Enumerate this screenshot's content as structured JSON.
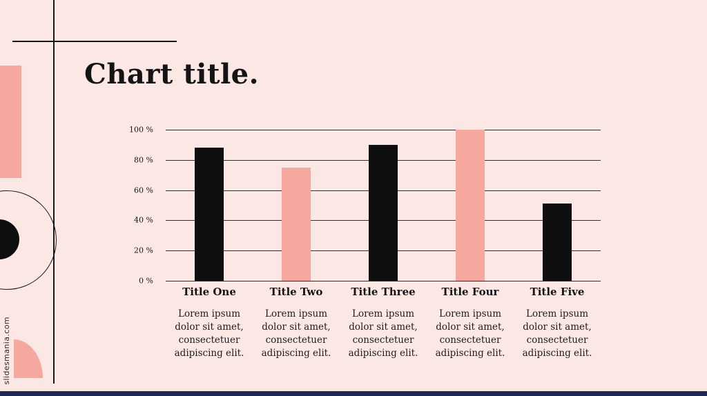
{
  "slide": {
    "title": "Chart title.",
    "credit": "slidesmania.com"
  },
  "colors": {
    "background": "#fbe8e5",
    "accent_pink": "#f6a79e",
    "bar_black": "#0e0e0e",
    "line": "#161616",
    "footer_navy": "#1e2a56"
  },
  "chart_data": {
    "type": "bar",
    "title": "Chart title.",
    "categories": [
      "Title One",
      "Title Two",
      "Title Three",
      "Title Four",
      "Title Five"
    ],
    "values": [
      88,
      75,
      90,
      100,
      51
    ],
    "bar_colors": [
      "#0e0e0e",
      "#f6a79e",
      "#0e0e0e",
      "#f6a79e",
      "#0e0e0e"
    ],
    "descriptions": [
      "Lorem ipsum dolor sit amet, consectetuer adipiscing elit.",
      "Lorem ipsum dolor sit amet, consectetuer adipiscing elit.",
      "Lorem ipsum dolor sit amet, consectetuer adipiscing elit.",
      "Lorem ipsum dolor sit amet, consectetuer adipiscing elit.",
      "Lorem ipsum dolor sit amet, consectetuer adipiscing elit."
    ],
    "y_ticks": [
      "100 %",
      "80 %",
      "60 %",
      "40 %",
      "20 %",
      "0 %"
    ],
    "ylim": [
      0,
      100
    ],
    "grid": true,
    "legend": false
  }
}
